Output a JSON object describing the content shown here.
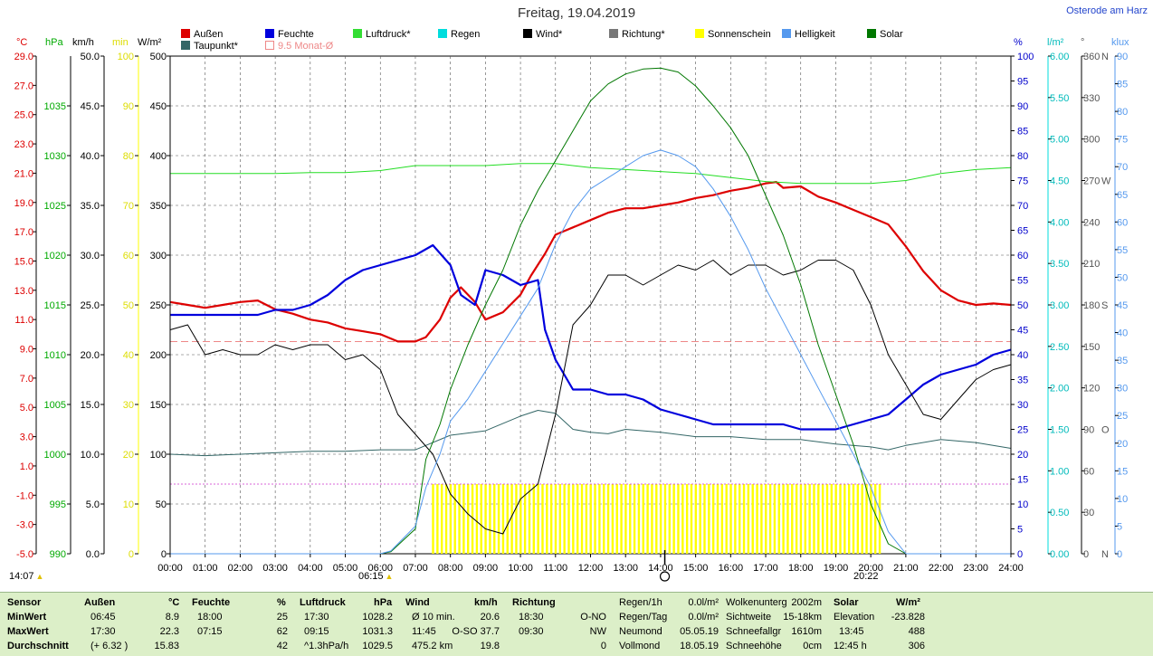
{
  "title": "Freitag, 19.04.2019",
  "location": "Osterode am Harz",
  "time_now": "14:07",
  "sunrise": "06:15",
  "sunset": "20:22",
  "colors": {
    "aussen": "#dd0000",
    "feuchte": "#0000dd",
    "luftdruck": "#00cc00",
    "regen": "#00dddd",
    "wind": "#000000",
    "richtung": "#777777",
    "sonne": "#ffff00",
    "helligkeit": "#5599ee",
    "solar": "#007700",
    "taupunkt": "#336666",
    "monat": "#ee8888"
  },
  "legend": [
    {
      "label": "Außen",
      "color": "#dd0000"
    },
    {
      "label": "Feuchte",
      "color": "#0000dd"
    },
    {
      "label": "Luftdruck*",
      "color": "#33dd33"
    },
    {
      "label": "Regen",
      "color": "#00dddd"
    },
    {
      "label": "Wind*",
      "color": "#000000"
    },
    {
      "label": "Richtung*",
      "color": "#777777"
    },
    {
      "label": "Sonnenschein",
      "color": "#ffff00"
    },
    {
      "label": "Helligkeit",
      "color": "#5599ee"
    },
    {
      "label": "Solar",
      "color": "#007700"
    },
    {
      "label": "Taupunkt*",
      "color": "#336666"
    },
    {
      "label": "9.5 Monat-Ø",
      "color": "#ee8888"
    }
  ],
  "chart_data": {
    "type": "line",
    "x_range": [
      "00:00",
      "24:00"
    ],
    "x_ticks": [
      "00:00",
      "01:00",
      "02:00",
      "03:00",
      "04:00",
      "05:00",
      "06:00",
      "07:00",
      "08:00",
      "09:00",
      "10:00",
      "11:00",
      "12:00",
      "13:00",
      "14:00",
      "15:00",
      "16:00",
      "17:00",
      "18:00",
      "19:00",
      "20:00",
      "21:00",
      "22:00",
      "23:00",
      "24:00"
    ],
    "axes": {
      "temp": {
        "unit": "°C",
        "min": -5.0,
        "max": 29.0,
        "ticks": [
          "29.0",
          "27.0",
          "25.0",
          "23.0",
          "21.0",
          "19.0",
          "17.0",
          "15.0",
          "13.0",
          "11.0",
          "9.0",
          "7.0",
          "5.0",
          "3.0",
          "1.0",
          "-1.0",
          "-3.0",
          "-5.0"
        ],
        "color": "#dd0000"
      },
      "hpa": {
        "unit": "hPa",
        "min": 990,
        "max": 1040,
        "ticks": [
          "1035",
          "1030",
          "1025",
          "1020",
          "1015",
          "1010",
          "1005",
          "1000",
          "995",
          "990"
        ],
        "color": "#00aa00"
      },
      "kmh": {
        "unit": "km/h",
        "min": 0,
        "max": 50,
        "ticks": [
          "50.0",
          "45.0",
          "40.0",
          "35.0",
          "30.0",
          "25.0",
          "20.0",
          "15.0",
          "10.0",
          "5.0",
          "0.0"
        ],
        "color": "#000000"
      },
      "min": {
        "unit": "min",
        "min": 0,
        "max": 100,
        "ticks": [
          "100",
          "90",
          "80",
          "70",
          "60",
          "50",
          "40",
          "30",
          "20",
          "10",
          "0"
        ],
        "color": "#dddd00"
      },
      "wm2": {
        "unit": "W/m²",
        "min": 0,
        "max": 500,
        "ticks": [
          "500",
          "450",
          "400",
          "350",
          "300",
          "250",
          "200",
          "150",
          "100",
          "50",
          "0"
        ],
        "color": "#000000"
      },
      "pct": {
        "unit": "%",
        "min": 0,
        "max": 100,
        "ticks": [
          "100",
          "95",
          "90",
          "85",
          "80",
          "75",
          "70",
          "65",
          "60",
          "55",
          "50",
          "45",
          "40",
          "35",
          "30",
          "25",
          "20",
          "15",
          "10",
          "5",
          "0"
        ],
        "color": "#0000cc"
      },
      "lm2": {
        "unit": "l/m²",
        "min": 0,
        "max": 6,
        "ticks": [
          "6.00",
          "5.50",
          "5.00",
          "4.50",
          "4.00",
          "3.50",
          "3.00",
          "2.50",
          "2.00",
          "1.50",
          "1.00",
          "0.50",
          "0.00"
        ],
        "color": "#00bbbb"
      },
      "deg": {
        "unit": "°",
        "min": 0,
        "max": 360,
        "ticks": [
          "360",
          "330",
          "300",
          "270",
          "240",
          "210",
          "180",
          "150",
          "120",
          "90",
          "60",
          "30",
          "0"
        ],
        "dirs": {
          "360": "N",
          "270": "W",
          "180": "S",
          "90": "O",
          "0": "N"
        },
        "color": "#555555"
      },
      "klux": {
        "unit": "klux",
        "min": 0,
        "max": 90,
        "ticks": [
          "90",
          "85",
          "80",
          "75",
          "70",
          "65",
          "60",
          "55",
          "50",
          "45",
          "40",
          "35",
          "30",
          "25",
          "20",
          "15",
          "10",
          "5",
          "0"
        ],
        "color": "#5599ee"
      }
    },
    "monat_avg_temp": 9.5,
    "sonnenschein": {
      "from": 7.5,
      "to": 20.3,
      "level_min": 14
    },
    "series": [
      {
        "name": "Außen",
        "axis": "temp",
        "x": [
          0,
          0.5,
          1,
          1.5,
          2,
          2.5,
          3,
          3.5,
          4,
          4.5,
          5,
          5.5,
          6,
          6.5,
          7,
          7.3,
          7.7,
          8,
          8.3,
          8.7,
          9,
          9.5,
          10,
          10.3,
          10.7,
          11,
          11.5,
          12,
          12.5,
          13,
          13.5,
          14,
          14.5,
          15,
          15.5,
          16,
          16.5,
          17,
          17.3,
          17.5,
          18,
          18.5,
          19,
          19.5,
          20,
          20.5,
          21,
          21.5,
          22,
          22.5,
          23,
          23.5,
          24
        ],
        "y": [
          12.2,
          12.0,
          11.8,
          12.0,
          12.2,
          12.3,
          11.7,
          11.4,
          11.0,
          10.8,
          10.4,
          10.2,
          10.0,
          9.5,
          9.5,
          9.8,
          11.0,
          12.5,
          13.2,
          12.2,
          11.0,
          11.5,
          12.7,
          14.0,
          15.5,
          16.8,
          17.3,
          17.8,
          18.3,
          18.6,
          18.6,
          18.8,
          19.0,
          19.3,
          19.5,
          19.8,
          20.0,
          20.3,
          20.4,
          20.0,
          20.1,
          19.4,
          19.0,
          18.5,
          18.0,
          17.5,
          16.0,
          14.3,
          13.0,
          12.3,
          12.0,
          12.1,
          12.0
        ]
      },
      {
        "name": "Taupunkt",
        "axis": "temp",
        "x": [
          0,
          1,
          2,
          3,
          4,
          5,
          6,
          7,
          8,
          9,
          10,
          10.5,
          11,
          11.5,
          12,
          12.5,
          13,
          14,
          15,
          16,
          17,
          18,
          19,
          20,
          20.5,
          21,
          22,
          23,
          24
        ],
        "y": [
          1.8,
          1.7,
          1.8,
          1.9,
          2.0,
          2.0,
          2.1,
          2.1,
          3.1,
          3.4,
          4.4,
          4.8,
          4.6,
          3.5,
          3.3,
          3.2,
          3.5,
          3.3,
          3.0,
          3.0,
          2.8,
          2.8,
          2.5,
          2.3,
          2.1,
          2.4,
          2.8,
          2.6,
          2.2
        ]
      },
      {
        "name": "Feuchte",
        "axis": "pct",
        "x": [
          0,
          0.5,
          1,
          1.5,
          2,
          2.5,
          3,
          3.5,
          4,
          4.5,
          5,
          5.5,
          6,
          6.5,
          7,
          7.5,
          8,
          8.3,
          8.7,
          9,
          9.5,
          10,
          10.5,
          10.7,
          11,
          11.5,
          12,
          12.5,
          13,
          13.5,
          14,
          14.5,
          15,
          15.5,
          16,
          16.5,
          17,
          17.5,
          18,
          18.5,
          19,
          19.5,
          20,
          20.5,
          21,
          21.5,
          22,
          22.5,
          23,
          23.5,
          24
        ],
        "y": [
          48,
          48,
          48,
          48,
          48,
          48,
          49,
          49,
          50,
          52,
          55,
          57,
          58,
          59,
          60,
          62,
          58,
          52,
          50,
          57,
          56,
          54,
          55,
          45,
          39,
          33,
          33,
          32,
          32,
          31,
          29,
          28,
          27,
          26,
          26,
          26,
          26,
          26,
          25,
          25,
          25,
          26,
          27,
          28,
          31,
          34,
          36,
          37,
          38,
          40,
          41
        ]
      },
      {
        "name": "Luftdruck",
        "axis": "hpa",
        "x": [
          0,
          1,
          2,
          3,
          4,
          5,
          6,
          7,
          8,
          9,
          10,
          11,
          12,
          13,
          14,
          15,
          16,
          17,
          18,
          19,
          20,
          21,
          22,
          23,
          24
        ],
        "y": [
          1028.2,
          1028.2,
          1028.2,
          1028.2,
          1028.3,
          1028.3,
          1028.5,
          1029.0,
          1029.0,
          1029.0,
          1029.2,
          1029.2,
          1028.8,
          1028.6,
          1028.4,
          1028.2,
          1027.8,
          1027.4,
          1027.2,
          1027.2,
          1027.2,
          1027.5,
          1028.2,
          1028.6,
          1028.8
        ]
      },
      {
        "name": "Wind",
        "axis": "kmh",
        "x": [
          0,
          0.5,
          1,
          1.5,
          2,
          2.5,
          3,
          3.5,
          4,
          4.5,
          5,
          5.5,
          6,
          6.5,
          7,
          7.5,
          8,
          8.5,
          9,
          9.5,
          10,
          10.5,
          11,
          11.5,
          12,
          12.5,
          13,
          13.5,
          14,
          14.5,
          15,
          15.5,
          16,
          16.5,
          17,
          17.5,
          18,
          18.5,
          19,
          19.5,
          20,
          20.5,
          21,
          21.5,
          22,
          22.5,
          23,
          23.5,
          24
        ],
        "y": [
          22.5,
          23.0,
          20.0,
          20.5,
          20.0,
          20.0,
          21.0,
          20.5,
          21.0,
          21.0,
          19.5,
          20.0,
          18.5,
          14.0,
          12.0,
          10.0,
          6.0,
          4.0,
          2.5,
          2.0,
          5.5,
          7.0,
          14.0,
          23.0,
          25.0,
          28.0,
          28.0,
          27.0,
          28.0,
          29.0,
          28.5,
          29.5,
          28.0,
          29.0,
          29.0,
          28.0,
          28.5,
          29.5,
          29.5,
          28.5,
          25.0,
          20.0,
          17.0,
          14.0,
          13.5,
          15.5,
          17.5,
          18.5,
          19.0
        ]
      },
      {
        "name": "Solar",
        "axis": "wm2",
        "x": [
          0,
          6,
          6.3,
          7,
          7.3,
          7.7,
          8,
          8.5,
          9,
          9.5,
          10,
          10.5,
          11,
          11.5,
          12,
          12.5,
          13,
          13.5,
          14,
          14.5,
          15,
          15.5,
          16,
          16.5,
          17,
          17.5,
          18,
          18.5,
          19,
          19.5,
          20,
          20.5,
          21,
          24
        ],
        "y": [
          0,
          0,
          2,
          25,
          95,
          130,
          165,
          210,
          250,
          285,
          330,
          365,
          395,
          425,
          455,
          472,
          482,
          487,
          488,
          484,
          470,
          450,
          428,
          400,
          360,
          320,
          270,
          210,
          160,
          110,
          50,
          10,
          0,
          0
        ]
      },
      {
        "name": "Helligkeit",
        "axis": "klux",
        "x": [
          0,
          6,
          6.3,
          7,
          7.3,
          7.7,
          8,
          8.5,
          9,
          9.5,
          10,
          10.5,
          11,
          11.5,
          12,
          12.5,
          13,
          13.5,
          14,
          14.5,
          15,
          15.5,
          16,
          16.5,
          17,
          17.5,
          18,
          18.5,
          19,
          19.5,
          20,
          20.5,
          21,
          24
        ],
        "y": [
          0,
          0,
          0.5,
          5,
          12,
          18,
          24,
          28,
          33,
          38,
          43,
          48,
          56,
          62,
          66,
          68,
          70,
          72,
          73,
          72,
          70,
          66,
          61,
          55,
          48,
          42,
          36,
          30,
          24,
          18,
          12,
          4,
          0,
          0
        ]
      }
    ]
  },
  "stats": {
    "headers": [
      {
        "label": "Sensor"
      },
      {
        "label": "Außen",
        "unit": "°C"
      },
      {
        "label": "Feuchte",
        "unit": "%"
      },
      {
        "label": "Luftdruck",
        "unit": "hPa"
      },
      {
        "label": "Wind",
        "unit": "km/h"
      },
      {
        "label": "Richtung"
      }
    ],
    "rows": [
      {
        "label": "MinWert",
        "aussen_t": "06:45",
        "aussen_v": "8.9",
        "feuchte_t": "18:00",
        "feuchte_v": "25",
        "luft_t": "17:30",
        "luft_v": "1028.2",
        "wind_t": "Ø 10 min.",
        "wind_v": "20.6",
        "richt_t": "18:30",
        "richt_v": "O-NO"
      },
      {
        "label": "MaxWert",
        "aussen_t": "17:30",
        "aussen_v": "22.3",
        "feuchte_t": "07:15",
        "feuchte_v": "62",
        "luft_t": "09:15",
        "luft_v": "1031.3",
        "wind_t": "11:45",
        "wind_v": "O-SO 37.7",
        "richt_t": "09:30",
        "richt_v": "NW"
      },
      {
        "label": "Durchschnitt",
        "aussen_t": "(+ 6.32 )",
        "aussen_v": "15.83",
        "feuchte_t": "",
        "feuchte_v": "42",
        "luft_t": "^1.3hPa/h",
        "luft_v": "1029.5",
        "wind_t": "475.2 km",
        "wind_v": "19.8",
        "richt_t": "",
        "richt_v": "0"
      }
    ],
    "extra": [
      [
        "Regen/1h",
        "0.0l/m²",
        "Wolkenunterg",
        "2002m"
      ],
      [
        "Regen/Tag",
        "0.0l/m²",
        "Sichtweite",
        "15-18km"
      ],
      [
        "Neumond",
        "05.05.19",
        "Schneefallgr",
        "1610m"
      ],
      [
        "Vollmond",
        "18.05.19",
        "Schneehöhe",
        "0cm"
      ]
    ],
    "solar": {
      "header": "Solar",
      "unit": "W/m²",
      "rows": [
        [
          "Elevation",
          "-23.828"
        ],
        [
          "13:45",
          "488"
        ],
        [
          "12:45 h",
          "306"
        ]
      ]
    }
  }
}
